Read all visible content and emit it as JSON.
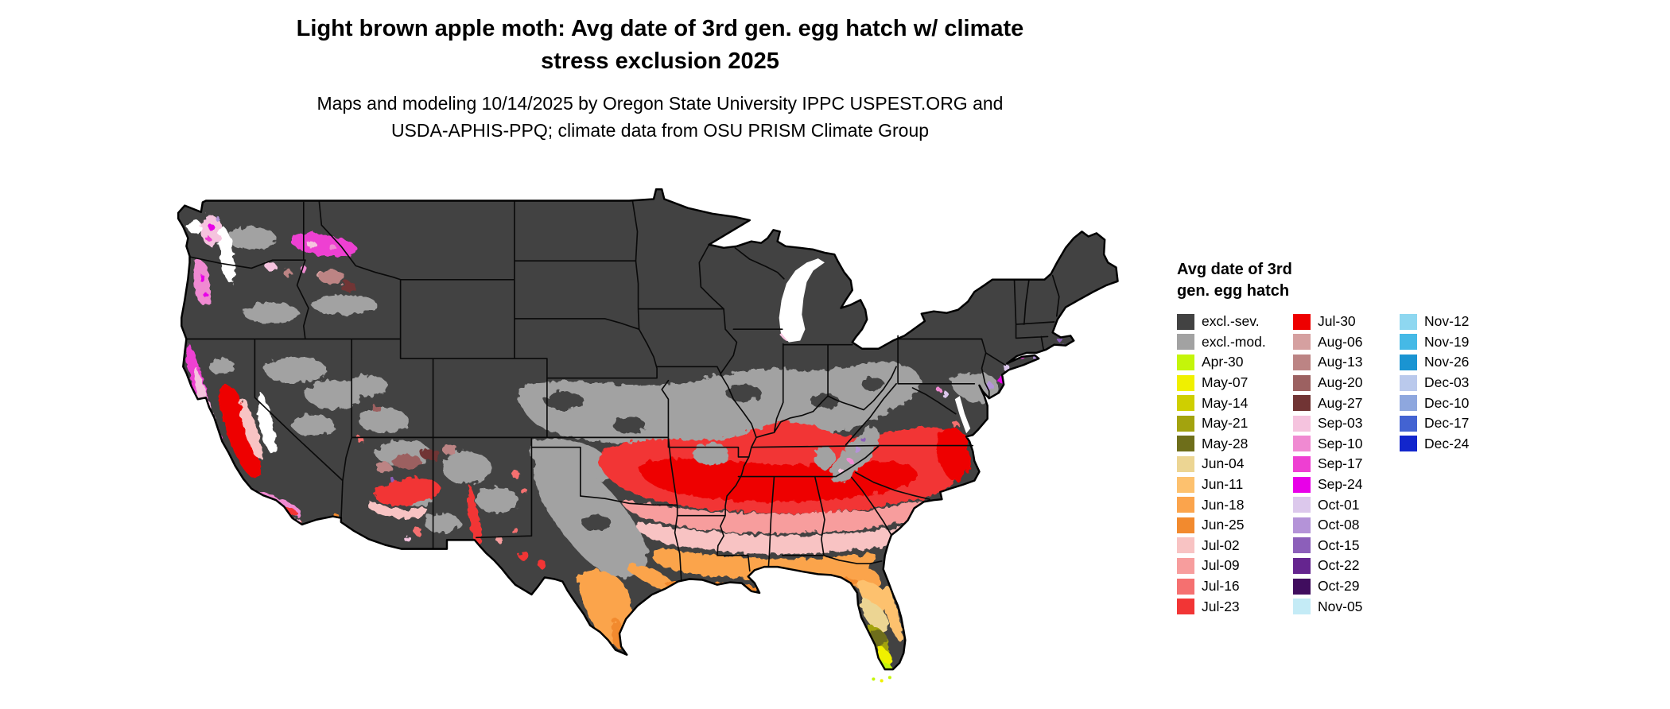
{
  "title": {
    "lines": [
      "Light brown apple moth: Avg date of 3rd gen. egg hatch w/ climate",
      "stress exclusion 2025"
    ]
  },
  "subtitle": {
    "lines": [
      "Maps and modeling 10/14/2025 by Oregon State University IPPC USPEST.ORG and",
      "USDA-APHIS-PPQ; climate data from OSU PRISM Climate Group"
    ]
  },
  "legend": {
    "title_lines": [
      "Avg date of 3rd",
      "gen. egg hatch"
    ],
    "columns": [
      [
        {
          "label": "excl.-sev.",
          "color": "#424242"
        },
        {
          "label": "excl.-mod.",
          "color": "#a2a2a2"
        },
        {
          "label": "Apr-30",
          "color": "#c4f50a"
        },
        {
          "label": "May-07",
          "color": "#f0f000"
        },
        {
          "label": "May-14",
          "color": "#cfcf00"
        },
        {
          "label": "May-21",
          "color": "#a3a30e"
        },
        {
          "label": "May-28",
          "color": "#6e6e1a"
        },
        {
          "label": "Jun-04",
          "color": "#ecd593"
        },
        {
          "label": "Jun-11",
          "color": "#fdc16e"
        },
        {
          "label": "Jun-18",
          "color": "#fba44c"
        },
        {
          "label": "Jun-25",
          "color": "#f28a2e"
        },
        {
          "label": "Jul-02",
          "color": "#f8c3c3"
        },
        {
          "label": "Jul-09",
          "color": "#f79d9d"
        },
        {
          "label": "Jul-16",
          "color": "#f57070"
        },
        {
          "label": "Jul-23",
          "color": "#f23535"
        }
      ],
      [
        {
          "label": "Jul-30",
          "color": "#ee0000"
        },
        {
          "label": "Aug-06",
          "color": "#d5a0a0"
        },
        {
          "label": "Aug-13",
          "color": "#bc8484"
        },
        {
          "label": "Aug-20",
          "color": "#9c6161"
        },
        {
          "label": "Aug-27",
          "color": "#713434"
        },
        {
          "label": "Sep-03",
          "color": "#f5c3de"
        },
        {
          "label": "Sep-10",
          "color": "#f08ad2"
        },
        {
          "label": "Sep-17",
          "color": "#ee3fd2"
        },
        {
          "label": "Sep-24",
          "color": "#e800e8"
        },
        {
          "label": "Oct-01",
          "color": "#dcc8ec"
        },
        {
          "label": "Oct-08",
          "color": "#b493d8"
        },
        {
          "label": "Oct-15",
          "color": "#8c5fba"
        },
        {
          "label": "Oct-22",
          "color": "#65258f"
        },
        {
          "label": "Oct-29",
          "color": "#400d5e"
        },
        {
          "label": "Nov-05",
          "color": "#c4ebf6"
        }
      ],
      [
        {
          "label": "Nov-12",
          "color": "#8ed7f0"
        },
        {
          "label": "Nov-19",
          "color": "#45b9e6"
        },
        {
          "label": "Nov-26",
          "color": "#1a94d2"
        },
        {
          "label": "Dec-03",
          "color": "#bac9ec"
        },
        {
          "label": "Dec-10",
          "color": "#8ea7de"
        },
        {
          "label": "Dec-17",
          "color": "#4363d2"
        },
        {
          "label": "Dec-24",
          "color": "#1226cc"
        }
      ]
    ]
  },
  "chart_data": {
    "type": "heatmap",
    "map": "Continental United States raster choropleth with state borders",
    "title": "Light brown apple moth: Avg date of 3rd gen. egg hatch w/ climate stress exclusion 2025",
    "subtitle": "Maps and modeling 10/14/2025 by Oregon State University IPPC USPEST.ORG and USDA-APHIS-PPQ; climate data from OSU PRISM Climate Group",
    "legend_title": "Avg date of 3rd gen. egg hatch",
    "classes": [
      {
        "label": "excl.-sev.",
        "color": "#424242"
      },
      {
        "label": "excl.-mod.",
        "color": "#a2a2a2"
      },
      {
        "label": "Apr-30",
        "color": "#c4f50a"
      },
      {
        "label": "May-07",
        "color": "#f0f000"
      },
      {
        "label": "May-14",
        "color": "#cfcf00"
      },
      {
        "label": "May-21",
        "color": "#a3a30e"
      },
      {
        "label": "May-28",
        "color": "#6e6e1a"
      },
      {
        "label": "Jun-04",
        "color": "#ecd593"
      },
      {
        "label": "Jun-11",
        "color": "#fdc16e"
      },
      {
        "label": "Jun-18",
        "color": "#fba44c"
      },
      {
        "label": "Jun-25",
        "color": "#f28a2e"
      },
      {
        "label": "Jul-02",
        "color": "#f8c3c3"
      },
      {
        "label": "Jul-09",
        "color": "#f79d9d"
      },
      {
        "label": "Jul-16",
        "color": "#f57070"
      },
      {
        "label": "Jul-23",
        "color": "#f23535"
      },
      {
        "label": "Jul-30",
        "color": "#ee0000"
      },
      {
        "label": "Aug-06",
        "color": "#d5a0a0"
      },
      {
        "label": "Aug-13",
        "color": "#bc8484"
      },
      {
        "label": "Aug-20",
        "color": "#9c6161"
      },
      {
        "label": "Aug-27",
        "color": "#713434"
      },
      {
        "label": "Sep-03",
        "color": "#f5c3de"
      },
      {
        "label": "Sep-10",
        "color": "#f08ad2"
      },
      {
        "label": "Sep-17",
        "color": "#ee3fd2"
      },
      {
        "label": "Sep-24",
        "color": "#e800e8"
      },
      {
        "label": "Oct-01",
        "color": "#dcc8ec"
      },
      {
        "label": "Oct-08",
        "color": "#b493d8"
      },
      {
        "label": "Oct-15",
        "color": "#8c5fba"
      },
      {
        "label": "Oct-22",
        "color": "#65258f"
      },
      {
        "label": "Oct-29",
        "color": "#400d5e"
      },
      {
        "label": "Nov-05",
        "color": "#c4ebf6"
      },
      {
        "label": "Nov-12",
        "color": "#8ed7f0"
      },
      {
        "label": "Nov-19",
        "color": "#45b9e6"
      },
      {
        "label": "Nov-26",
        "color": "#1a94d2"
      },
      {
        "label": "Dec-03",
        "color": "#bac9ec"
      },
      {
        "label": "Dec-10",
        "color": "#8ea7de"
      },
      {
        "label": "Dec-17",
        "color": "#4363d2"
      },
      {
        "label": "Dec-24",
        "color": "#1226cc"
      }
    ],
    "visible_patterns": [
      "Northern tier, Rockies and Great Basin mostly dark gray (excl.-sev.)",
      "Light gray (excl.-mod.) band across Kansas, Oklahoma, Missouri, the Ohio Valley and central Texas",
      "Red band (Jul-16 to Jul-30) from eastern Oklahoma and Arkansas across Tennessee, Kentucky, northern Alabama/Georgia and the Carolinas to coastal Virginia",
      "Pink (Jul-02 to Jul-09) then orange (Jun-18 to Jun-25) bands toward the Gulf Coast and south Texas",
      "Olive to yellow-green (May dates to Apr-30) in central and southern Florida",
      "Magenta, pink and purple (Sep to Oct dates) along Pacific coast valleys and Puget Sound; red (Jul-23 to Jul-30) in the California Central Valley",
      "Brown (Aug dates) patches in Arizona, New Mexico, Utah and eastern Oregon"
    ]
  }
}
